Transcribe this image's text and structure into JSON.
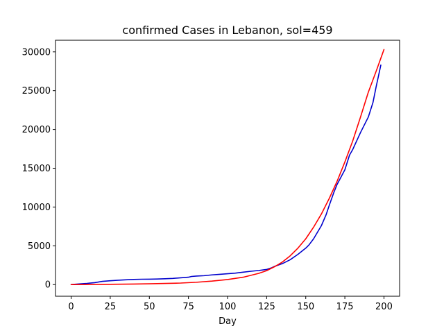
{
  "chart_data": {
    "type": "line",
    "title": "confirmed Cases in Lebanon, sol=459",
    "xlabel": "Day",
    "ylabel": "",
    "xlim": [
      -10,
      210
    ],
    "ylim": [
      -1500,
      31500
    ],
    "xticks": [
      0,
      25,
      50,
      75,
      100,
      125,
      150,
      175,
      200
    ],
    "yticks": [
      0,
      5000,
      10000,
      15000,
      20000,
      25000,
      30000
    ],
    "grid": false,
    "legend": "none",
    "series": [
      {
        "color": "#0000cc",
        "x": [
          0,
          5,
          10,
          15,
          18,
          20,
          25,
          30,
          35,
          40,
          45,
          50,
          55,
          60,
          65,
          70,
          75,
          77,
          80,
          85,
          90,
          95,
          100,
          105,
          110,
          115,
          120,
          125,
          128,
          130,
          135,
          138,
          140,
          145,
          150,
          152,
          155,
          160,
          163,
          165,
          168,
          170,
          175,
          178,
          180,
          185,
          190,
          193,
          195,
          198
        ],
        "y": [
          0,
          80,
          150,
          250,
          350,
          420,
          500,
          560,
          620,
          660,
          690,
          700,
          720,
          750,
          800,
          880,
          950,
          1050,
          1100,
          1150,
          1250,
          1320,
          1400,
          1480,
          1600,
          1720,
          1820,
          1950,
          2150,
          2350,
          2700,
          3000,
          3200,
          3900,
          4700,
          5100,
          5900,
          7600,
          9000,
          10200,
          11900,
          12900,
          14800,
          16700,
          17400,
          19600,
          21600,
          23500,
          25500,
          28300
        ]
      },
      {
        "color": "#ff0000",
        "x": [
          0,
          10,
          20,
          30,
          40,
          50,
          60,
          70,
          80,
          90,
          100,
          110,
          120,
          125,
          130,
          135,
          140,
          145,
          150,
          155,
          160,
          165,
          170,
          175,
          180,
          185,
          190,
          195,
          200
        ],
        "y": [
          0,
          15,
          30,
          50,
          75,
          105,
          145,
          200,
          300,
          450,
          650,
          950,
          1450,
          1800,
          2300,
          2900,
          3700,
          4700,
          5900,
          7400,
          9100,
          11100,
          13300,
          15800,
          18500,
          21600,
          24800,
          27500,
          30300
        ]
      }
    ]
  }
}
